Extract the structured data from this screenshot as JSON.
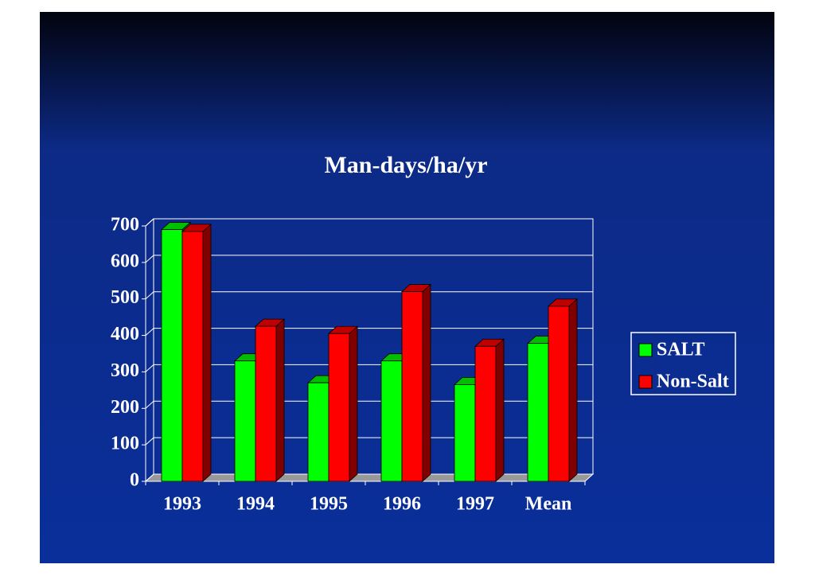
{
  "chart_data": {
    "type": "bar",
    "title": "Man-days/ha/yr",
    "categories": [
      "1993",
      "1994",
      "1995",
      "1996",
      "1997",
      "Mean"
    ],
    "series": [
      {
        "name": "SALT",
        "color": "#00ff00",
        "values": [
          690,
          330,
          270,
          330,
          265,
          378
        ]
      },
      {
        "name": "Non-Salt",
        "color": "#ff0000",
        "values": [
          685,
          425,
          405,
          520,
          370,
          480
        ]
      }
    ],
    "ylim": [
      0,
      700
    ],
    "yticks": [
      0,
      100,
      200,
      300,
      400,
      500,
      600,
      700
    ],
    "grid": true,
    "legend": "right"
  }
}
